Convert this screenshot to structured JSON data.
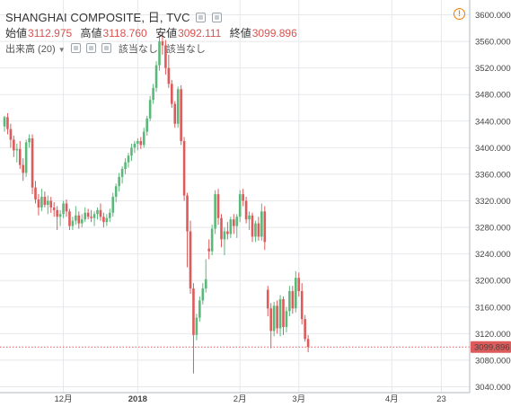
{
  "header": {
    "symbol": "SHANGHAI COMPOSITE, 日, TVC",
    "open_label": "始値",
    "open_value": "3112.975",
    "high_label": "高値",
    "high_value": "3118.760",
    "low_label": "安値",
    "low_value": "3092.111",
    "close_label": "終値",
    "close_value": "3099.896",
    "volume_label": "出来高 (20)",
    "volume_value_1": "該当なし",
    "volume_value_2": "該当なし"
  },
  "colors": {
    "up": "#5cb87a",
    "down": "#dd5b5b",
    "price_line": "#dd5b5b",
    "grid": "#e6e8eb"
  },
  "chart_data": {
    "type": "candlestick",
    "ylim": [
      3030,
      3610
    ],
    "yticks": [
      3040,
      3080,
      3120,
      3160,
      3200,
      3240,
      3280,
      3320,
      3360,
      3400,
      3440,
      3480,
      3520,
      3560,
      3600
    ],
    "xtick_labels": [
      {
        "label": "12月",
        "bar": 19,
        "bold": false
      },
      {
        "label": "2018",
        "bar": 43,
        "bold": true
      },
      {
        "label": "2月",
        "bar": 76,
        "bold": false
      },
      {
        "label": "3月",
        "bar": 95,
        "bold": false
      },
      {
        "label": "4月",
        "bar": 125,
        "bold": false
      },
      {
        "label": "23",
        "bar": 141,
        "bold": false
      }
    ],
    "last_price_label": "3099.896",
    "last_price": 3099.896,
    "candles": [
      [
        3432,
        3448,
        3424,
        3446
      ],
      [
        3446,
        3452,
        3420,
        3428
      ],
      [
        3428,
        3436,
        3400,
        3412
      ],
      [
        3412,
        3418,
        3386,
        3396
      ],
      [
        3396,
        3406,
        3378,
        3398
      ],
      [
        3398,
        3410,
        3368,
        3374
      ],
      [
        3374,
        3384,
        3350,
        3362
      ],
      [
        3362,
        3412,
        3356,
        3408
      ],
      [
        3408,
        3420,
        3400,
        3414
      ],
      [
        3414,
        3420,
        3330,
        3340
      ],
      [
        3340,
        3350,
        3316,
        3322
      ],
      [
        3322,
        3330,
        3298,
        3310
      ],
      [
        3310,
        3338,
        3304,
        3326
      ],
      [
        3326,
        3334,
        3310,
        3314
      ],
      [
        3314,
        3328,
        3300,
        3320
      ],
      [
        3320,
        3326,
        3302,
        3310
      ],
      [
        3310,
        3318,
        3296,
        3306
      ],
      [
        3306,
        3312,
        3276,
        3296
      ],
      [
        3296,
        3306,
        3282,
        3300
      ],
      [
        3300,
        3320,
        3294,
        3316
      ],
      [
        3316,
        3322,
        3296,
        3304
      ],
      [
        3304,
        3308,
        3276,
        3282
      ],
      [
        3282,
        3296,
        3276,
        3290
      ],
      [
        3290,
        3312,
        3284,
        3298
      ],
      [
        3298,
        3304,
        3278,
        3286
      ],
      [
        3286,
        3300,
        3280,
        3292
      ],
      [
        3292,
        3310,
        3288,
        3302
      ],
      [
        3302,
        3308,
        3292,
        3296
      ],
      [
        3296,
        3306,
        3288,
        3294
      ],
      [
        3294,
        3304,
        3282,
        3300
      ],
      [
        3300,
        3310,
        3292,
        3306
      ],
      [
        3306,
        3316,
        3290,
        3296
      ],
      [
        3296,
        3302,
        3280,
        3288
      ],
      [
        3288,
        3300,
        3282,
        3294
      ],
      [
        3294,
        3308,
        3288,
        3302
      ],
      [
        3302,
        3332,
        3296,
        3326
      ],
      [
        3326,
        3346,
        3318,
        3342
      ],
      [
        3342,
        3362,
        3334,
        3356
      ],
      [
        3356,
        3372,
        3346,
        3368
      ],
      [
        3368,
        3384,
        3360,
        3378
      ],
      [
        3378,
        3392,
        3370,
        3388
      ],
      [
        3388,
        3406,
        3380,
        3400
      ],
      [
        3400,
        3410,
        3392,
        3406
      ],
      [
        3406,
        3414,
        3396,
        3410
      ],
      [
        3410,
        3416,
        3398,
        3404
      ],
      [
        3404,
        3430,
        3400,
        3424
      ],
      [
        3424,
        3448,
        3418,
        3444
      ],
      [
        3444,
        3478,
        3440,
        3472
      ],
      [
        3472,
        3496,
        3466,
        3490
      ],
      [
        3490,
        3530,
        3484,
        3524
      ],
      [
        3524,
        3568,
        3516,
        3560
      ],
      [
        3560,
        3574,
        3540,
        3554
      ],
      [
        3554,
        3562,
        3510,
        3520
      ],
      [
        3520,
        3540,
        3490,
        3496
      ],
      [
        3496,
        3502,
        3460,
        3466
      ],
      [
        3466,
        3470,
        3430,
        3436
      ],
      [
        3436,
        3492,
        3430,
        3488
      ],
      [
        3488,
        3494,
        3404,
        3410
      ],
      [
        3410,
        3416,
        3320,
        3328
      ],
      [
        3328,
        3332,
        3220,
        3274
      ],
      [
        3274,
        3290,
        3180,
        3188
      ],
      [
        3188,
        3196,
        3060,
        3118
      ],
      [
        3118,
        3150,
        3110,
        3144
      ],
      [
        3144,
        3176,
        3138,
        3170
      ],
      [
        3170,
        3196,
        3164,
        3188
      ],
      [
        3188,
        3232,
        3182,
        3202
      ],
      [
        3248,
        3262,
        3232,
        3244
      ],
      [
        3244,
        3284,
        3238,
        3278
      ],
      [
        3278,
        3336,
        3270,
        3330
      ],
      [
        3330,
        3338,
        3284,
        3294
      ],
      [
        3294,
        3300,
        3250,
        3262
      ],
      [
        3262,
        3280,
        3238,
        3274
      ],
      [
        3274,
        3288,
        3262,
        3270
      ],
      [
        3270,
        3296,
        3264,
        3292
      ],
      [
        3292,
        3300,
        3270,
        3282
      ],
      [
        3282,
        3300,
        3264,
        3296
      ],
      [
        3296,
        3336,
        3288,
        3330
      ],
      [
        3330,
        3338,
        3312,
        3320
      ],
      [
        3320,
        3326,
        3286,
        3292
      ],
      [
        3292,
        3304,
        3276,
        3298
      ],
      [
        3298,
        3302,
        3258,
        3266
      ],
      [
        3266,
        3290,
        3258,
        3286
      ],
      [
        3286,
        3296,
        3260,
        3266
      ],
      [
        3266,
        3316,
        3260,
        3304
      ],
      [
        3304,
        3312,
        3246,
        3258
      ],
      [
        3186,
        3192,
        3146,
        3158
      ],
      [
        3158,
        3166,
        3098,
        3124
      ],
      [
        3124,
        3168,
        3116,
        3162
      ],
      [
        3162,
        3170,
        3120,
        3128
      ],
      [
        3128,
        3178,
        3116,
        3172
      ],
      [
        3172,
        3176,
        3118,
        3130
      ],
      [
        3130,
        3160,
        3122,
        3154
      ],
      [
        3154,
        3192,
        3146,
        3184
      ],
      [
        3184,
        3192,
        3150,
        3158
      ],
      [
        3158,
        3214,
        3152,
        3204
      ],
      [
        3204,
        3212,
        3176,
        3184
      ],
      [
        3184,
        3196,
        3134,
        3142
      ],
      [
        3142,
        3148,
        3108,
        3112
      ],
      [
        3112,
        3118,
        3092,
        3100
      ]
    ]
  }
}
